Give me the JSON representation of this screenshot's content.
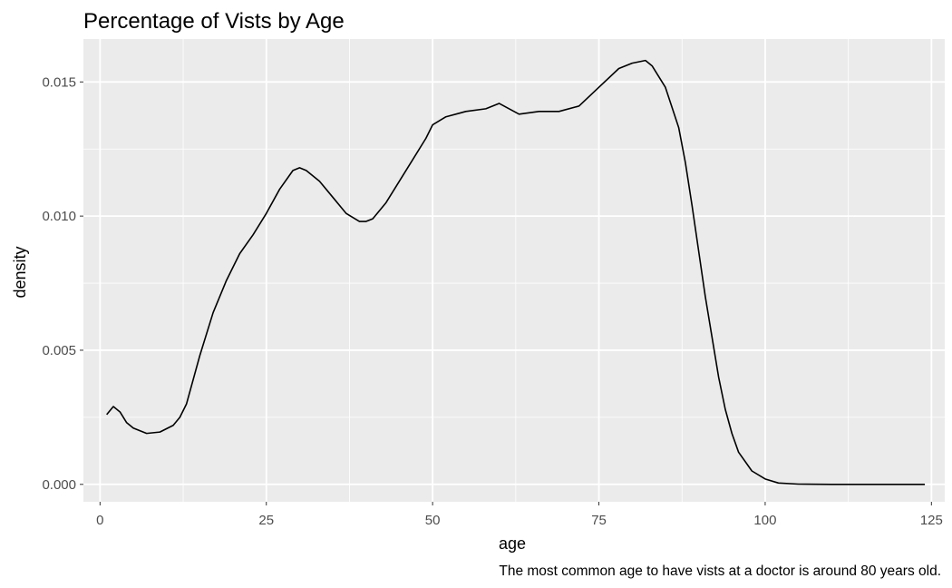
{
  "chart_data": {
    "type": "line",
    "title": "Percentage of Vists by Age",
    "xlabel": "age",
    "ylabel": "density",
    "caption": "The most common age to have vists at a doctor is around 80 years old.",
    "xlim": [
      -2.5,
      127
    ],
    "ylim": [
      -0.00065,
      0.0166
    ],
    "xticks": [
      0,
      25,
      50,
      75,
      100,
      125
    ],
    "xtick_labels": [
      "0",
      "25",
      "50",
      "75",
      "100",
      "125"
    ],
    "yticks": [
      0,
      0.005,
      0.01,
      0.015
    ],
    "ytick_labels": [
      "0.000",
      "0.005",
      "0.010",
      "0.015"
    ],
    "grid": true,
    "legend": "none",
    "colors": {
      "panel": "#ebebeb",
      "grid": "#ffffff",
      "line": "#000000"
    },
    "series": [
      {
        "x": [
          1,
          2,
          3,
          4,
          5,
          7,
          9,
          11,
          12,
          13,
          15,
          17,
          19,
          21,
          23,
          25,
          27,
          29,
          30,
          31,
          33,
          35,
          37,
          39,
          40,
          41,
          43,
          45,
          47,
          49,
          50,
          52,
          55,
          58,
          60,
          63,
          66,
          69,
          72,
          75,
          78,
          80,
          82,
          83,
          85,
          87,
          88,
          89,
          90,
          91,
          92,
          93,
          94,
          95,
          96,
          98,
          100,
          102,
          105,
          110,
          115,
          120,
          124
        ],
        "y": [
          0.0026,
          0.0029,
          0.0027,
          0.0023,
          0.0021,
          0.0019,
          0.00195,
          0.0022,
          0.0025,
          0.003,
          0.0048,
          0.0064,
          0.0076,
          0.0086,
          0.0093,
          0.0101,
          0.011,
          0.0117,
          0.0118,
          0.0117,
          0.0113,
          0.0107,
          0.0101,
          0.0098,
          0.0098,
          0.0099,
          0.0105,
          0.0113,
          0.0121,
          0.0129,
          0.0134,
          0.0137,
          0.0139,
          0.014,
          0.0142,
          0.0138,
          0.0139,
          0.0139,
          0.0141,
          0.0148,
          0.0155,
          0.0157,
          0.0158,
          0.0156,
          0.0148,
          0.0133,
          0.012,
          0.0104,
          0.0087,
          0.007,
          0.0055,
          0.004,
          0.0028,
          0.0019,
          0.0012,
          0.0005,
          0.0002,
          5e-05,
          1e-05,
          0,
          0,
          0,
          0
        ]
      }
    ]
  }
}
